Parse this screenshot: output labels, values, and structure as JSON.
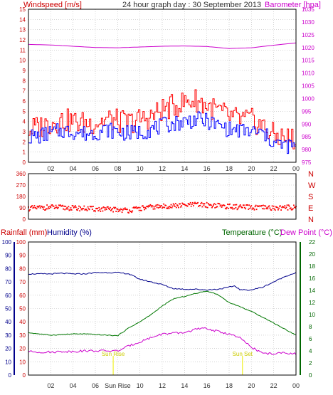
{
  "header": {
    "wind_label": "Windspeed [m/s]",
    "title": "24 hour graph day : 30 September 2013",
    "baro_label": "Barometer [hpa]"
  },
  "colors": {
    "windspeed": "#0000ff",
    "gust": "#ff0000",
    "barometer": "#cc00cc",
    "direction": "#ff0000",
    "humidity": "#00008b",
    "temperature": "#007700",
    "dewpoint": "#cc00cc",
    "sun": "#eeee00",
    "axis_red": "#cc0000",
    "axis_green": "#006600",
    "axis_blue": "#00008b",
    "grid": "#bbbbbb"
  },
  "chart_data": [
    {
      "type": "line",
      "name": "wind-barometer",
      "x_ticks": [
        "02",
        "04",
        "06",
        "08",
        "10",
        "12",
        "14",
        "16",
        "18",
        "20",
        "22",
        "00"
      ],
      "y_left": {
        "label": "Windspeed [m/s]",
        "ylim": [
          0,
          15
        ],
        "ticks": [
          "0",
          "1",
          "2",
          "3",
          "4",
          "5",
          "6",
          "7",
          "8",
          "9",
          "10",
          "11",
          "12",
          "13",
          "14",
          "15"
        ]
      },
      "y_right": {
        "label": "Barometer [hpa]",
        "ylim": [
          975,
          1035
        ],
        "ticks": [
          "975",
          "980",
          "985",
          "990",
          "995",
          "1000",
          "1005",
          "1010",
          "1015",
          "1020",
          "1025",
          "1030",
          "1035"
        ]
      },
      "grid": true,
      "series": [
        {
          "key": "windspeed",
          "x": [
            0,
            1,
            2,
            3,
            4,
            5,
            6,
            7,
            8,
            9,
            10,
            11,
            12,
            13,
            14,
            15,
            16,
            17,
            18,
            19,
            20,
            21,
            22,
            23,
            24
          ],
          "y": [
            2.5,
            2.6,
            2.9,
            3.1,
            3.0,
            2.8,
            2.9,
            3.2,
            3.0,
            2.8,
            3.0,
            3.2,
            3.6,
            3.8,
            4.0,
            4.2,
            4.0,
            3.6,
            3.2,
            3.1,
            3.0,
            2.8,
            1.9,
            1.6,
            1.6
          ]
        },
        {
          "key": "gust",
          "x": [
            0,
            1,
            2,
            3,
            4,
            5,
            6,
            7,
            8,
            9,
            10,
            11,
            12,
            13,
            14,
            15,
            16,
            17,
            18,
            19,
            20,
            21,
            22,
            23,
            24
          ],
          "y": [
            3.2,
            3.5,
            3.9,
            4.1,
            4.0,
            3.8,
            3.9,
            4.2,
            4.0,
            3.9,
            4.2,
            4.5,
            5.2,
            5.5,
            5.9,
            6.1,
            5.5,
            5.0,
            4.4,
            4.2,
            4.1,
            3.5,
            2.6,
            2.4,
            2.3
          ]
        },
        {
          "key": "barometer",
          "x": [
            0,
            2,
            4,
            6,
            8,
            10,
            12,
            14,
            16,
            18,
            20,
            22,
            24
          ],
          "y": [
            1021.2,
            1021.0,
            1020.5,
            1020.0,
            1019.9,
            1020.2,
            1020.5,
            1020.6,
            1020.4,
            1019.6,
            1019.9,
            1020.9,
            1021.8
          ]
        }
      ]
    },
    {
      "type": "scatter",
      "name": "wind-direction",
      "x_ticks": [
        "02",
        "04",
        "06",
        "08",
        "10",
        "12",
        "14",
        "16",
        "18",
        "20",
        "22",
        "00"
      ],
      "y_left": {
        "ylim": [
          0,
          360
        ],
        "ticks": [
          "0",
          "90",
          "180",
          "270",
          "360"
        ]
      },
      "y_right": {
        "ticks": [
          "N",
          "W",
          "S",
          "E",
          "N"
        ]
      },
      "grid": true,
      "series": [
        {
          "key": "direction",
          "x": [
            0,
            1,
            2,
            3,
            4,
            5,
            6,
            7,
            8,
            9,
            10,
            11,
            12,
            13,
            14,
            15,
            16,
            17,
            18,
            19,
            20,
            21,
            22,
            23,
            24
          ],
          "y": [
            85,
            90,
            95,
            92,
            88,
            85,
            80,
            78,
            75,
            70,
            85,
            95,
            100,
            105,
            110,
            115,
            112,
            108,
            100,
            95,
            92,
            90,
            88,
            92,
            95
          ]
        }
      ]
    },
    {
      "type": "line",
      "name": "rain-humidity-temperature-dewpoint",
      "x_ticks": [
        "02",
        "04",
        "06",
        "08",
        "10",
        "12",
        "14",
        "16",
        "18",
        "20",
        "22",
        "00"
      ],
      "y_left_rain": {
        "label": "Rainfall (mm)",
        "ylim": [
          0,
          100
        ],
        "ticks": [
          "0",
          "10",
          "20",
          "30",
          "40",
          "50",
          "60",
          "70",
          "80",
          "90",
          "100"
        ]
      },
      "y_left_humidity": {
        "label": "Humidity (%)",
        "ylim": [
          0,
          100
        ],
        "ticks": [
          "0",
          "10",
          "20",
          "30",
          "40",
          "50",
          "60",
          "70",
          "80",
          "90",
          "100"
        ]
      },
      "y_right": {
        "label_temperature": "Temperature (°C)",
        "label_dewpoint": "Dew Point (°C)",
        "ylim": [
          0,
          22
        ],
        "ticks": [
          "0",
          "2",
          "4",
          "6",
          "8",
          "10",
          "12",
          "14",
          "16",
          "18",
          "20",
          "22"
        ]
      },
      "grid": true,
      "annotations": [
        {
          "label": "Sun Rise",
          "x": 7.6
        },
        {
          "label": "Sun Set",
          "x": 19.2
        }
      ],
      "series": [
        {
          "key": "humidity",
          "x": [
            0,
            1,
            2,
            3,
            4,
            5,
            6,
            7,
            8,
            9,
            10,
            11,
            12,
            13,
            14,
            15,
            16,
            17,
            18,
            18.5,
            19,
            19.5,
            20,
            21,
            22,
            23,
            24
          ],
          "y": [
            76,
            76,
            76,
            76.5,
            76,
            76,
            77,
            77,
            77,
            76,
            72,
            70,
            68,
            65,
            64.5,
            64.5,
            64,
            64.5,
            66,
            67,
            64,
            64,
            64,
            66,
            70,
            74,
            77
          ]
        },
        {
          "key": "temperature",
          "x": [
            0,
            1,
            2,
            3,
            4,
            5,
            6,
            7,
            8,
            9,
            10,
            11,
            12,
            13,
            14,
            15,
            16,
            17,
            18,
            19,
            20,
            21,
            22,
            23,
            24
          ],
          "y": [
            7.0,
            6.8,
            6.6,
            6.7,
            6.8,
            6.8,
            6.7,
            6.6,
            6.5,
            7.8,
            8.8,
            10.0,
            11.4,
            12.6,
            13.0,
            13.5,
            13.9,
            13.3,
            12.0,
            11.3,
            10.5,
            9.6,
            8.6,
            7.6,
            6.6
          ]
        },
        {
          "key": "dewpoint",
          "x": [
            0,
            1,
            2,
            3,
            4,
            5,
            6,
            7,
            8,
            9,
            10,
            11,
            12,
            13,
            14,
            15,
            16,
            17,
            18,
            19,
            20,
            21,
            22,
            23,
            24
          ],
          "y": [
            3.9,
            3.8,
            3.8,
            3.9,
            3.9,
            4.0,
            4.0,
            4.0,
            4.0,
            4.8,
            5.5,
            6.2,
            6.8,
            6.9,
            7.0,
            7.6,
            7.7,
            7.2,
            6.8,
            6.1,
            4.6,
            3.6,
            3.5,
            3.7,
            3.5
          ]
        }
      ]
    }
  ],
  "sun_markers": {
    "rise_label": "Sun Rise",
    "rise_tick": "Sun Rise",
    "set_label": "Sun Set"
  },
  "mid_axis_letters": [
    "N",
    "W",
    "S",
    "E",
    "N"
  ],
  "bottom_x_labels": [
    "02",
    "04",
    "06",
    "Sun Rise",
    "10",
    "12",
    "14",
    "16",
    "18",
    "20",
    "22",
    "00"
  ],
  "bottom_headers": {
    "rain": "Rainfall (mm)",
    "humidity": "Humidity (%)",
    "temperature": "Temperature (°C)",
    "dewpoint": "Dew Point (°C)"
  }
}
